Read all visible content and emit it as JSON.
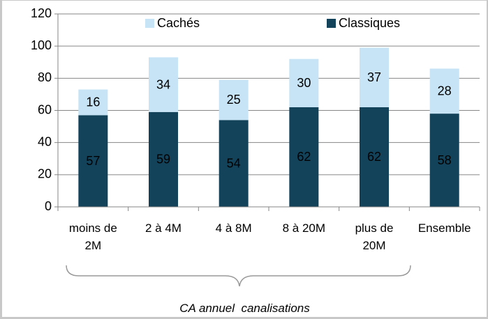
{
  "chart_data": {
    "type": "stacked_bar",
    "x_label": "CA annuel  canalisations",
    "categories": [
      "moins de 2M",
      "2 à 4M",
      "4 à 8M",
      "8 à 20M",
      "plus de 20M",
      "Ensemble"
    ],
    "series": [
      {
        "name": "Classiques",
        "color": "#12435b",
        "values": [
          57,
          59,
          54,
          62,
          62,
          58
        ]
      },
      {
        "name": "Cachés",
        "color": "#c6e4f6",
        "values": [
          16,
          34,
          25,
          30,
          37,
          28
        ]
      }
    ],
    "ylim": [
      0,
      120
    ],
    "yticks": [
      0,
      20,
      40,
      60,
      80,
      100,
      120
    ],
    "grid": true,
    "legend": "top"
  }
}
